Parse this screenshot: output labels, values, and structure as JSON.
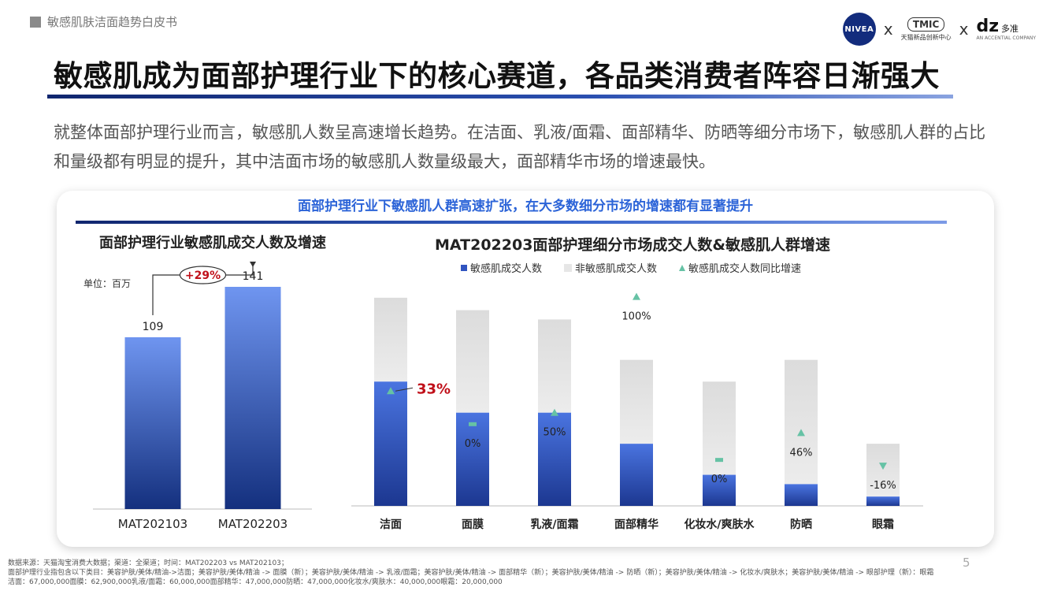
{
  "header": {
    "doc_title": "敏感肌肤洁面趋势白皮书",
    "logo_nivea": "NIVEA",
    "logo_x": "x",
    "logo_tmic": "TMIC",
    "logo_tmic_sub": "天猫新品创新中心",
    "logo_dz": "dz",
    "logo_dz_cn": "多准",
    "logo_dz_sub": "AN ACCENTIAL COMPANY"
  },
  "title": "敏感肌成为面部护理行业下的核心赛道，各品类消费者阵容日渐强大",
  "intro": "就整体面部护理行业而言，敏感肌人数呈高速增长趋势。在洁面、乳液/面霜、面部精华、防晒等细分市场下，敏感肌人群的占比和量级都有明显的提升，其中洁面市场的敏感肌人数量级最大，面部精华市场的增速最快。",
  "banner": "面部护理行业下敏感肌人群高速扩张，在大多数细分市场的增速都有显著提升",
  "chart_data": [
    {
      "type": "bar",
      "title": "面部护理行业敏感肌成交人数及增速",
      "unit_label": "单位：百万",
      "categories": [
        "MAT202103",
        "MAT202203"
      ],
      "values": [
        109,
        141
      ],
      "value_labels": [
        "109",
        "141"
      ],
      "growth_label": "+29%",
      "ylim": [
        0,
        160
      ],
      "colors": {
        "bar_top": "#6f95f0",
        "bar_bottom": "#14307e"
      }
    },
    {
      "type": "bar",
      "title": "MAT202203面部护理细分市场成交人数&敏感肌人群增速",
      "stacked": true,
      "categories": [
        "洁面",
        "面膜",
        "乳液/面霜",
        "面部精华",
        "化妆水/爽肤水",
        "防晒",
        "眼霜"
      ],
      "series": [
        {
          "name": "敏感肌成交人数",
          "values": [
            40,
            30,
            30,
            20,
            10,
            7,
            3
          ],
          "color": "#3054c0"
        },
        {
          "name": "非敏感肌成交人数",
          "values": [
            27,
            33,
            30,
            27,
            30,
            40,
            17
          ],
          "color": "#e6e6e6"
        }
      ],
      "growth": {
        "name": "敏感肌成交人数同比增速",
        "values": [
          33,
          0,
          50,
          100,
          0,
          46,
          -16
        ],
        "labels": [
          "33%",
          "0%",
          "50%",
          "100%",
          "0%",
          "46%",
          "-16%"
        ],
        "markers": [
          "up",
          "flat",
          "up",
          "up",
          "flat",
          "up",
          "down"
        ],
        "color": "#66c2a5",
        "highlight_color": "#c0101a"
      },
      "ylim": [
        0,
        70
      ],
      "note": "bar heights estimated"
    }
  ],
  "footnote": {
    "line1": "数据来源：天猫淘宝消费大数据；渠道：全渠道；时间：MAT202203 vs MAT202103；",
    "line2": "面部护理行业指包含以下类目：美容护肤/美体/精油->洁面；美容护肤/美体/精油 -> 面膜（新）；美容护肤/美体/精油 -> 乳液/面霜；美容护肤/美体/精油 -> 面部精华（新）；美容护肤/美体/精油 -> 防晒（新）；美容护肤/美体/精油 -> 化妆水/爽肤水；美容护肤/美体/精油 -> 眼部护理（新）：眼霜",
    "line3": "洁面：67,000,000面膜：62,900,000乳液/面霜：60,000,000面部精华：47,000,000防晒：47,000,000化妆水/爽肤水：40,000,000眼霜：20,000,000"
  },
  "page_number": "5"
}
